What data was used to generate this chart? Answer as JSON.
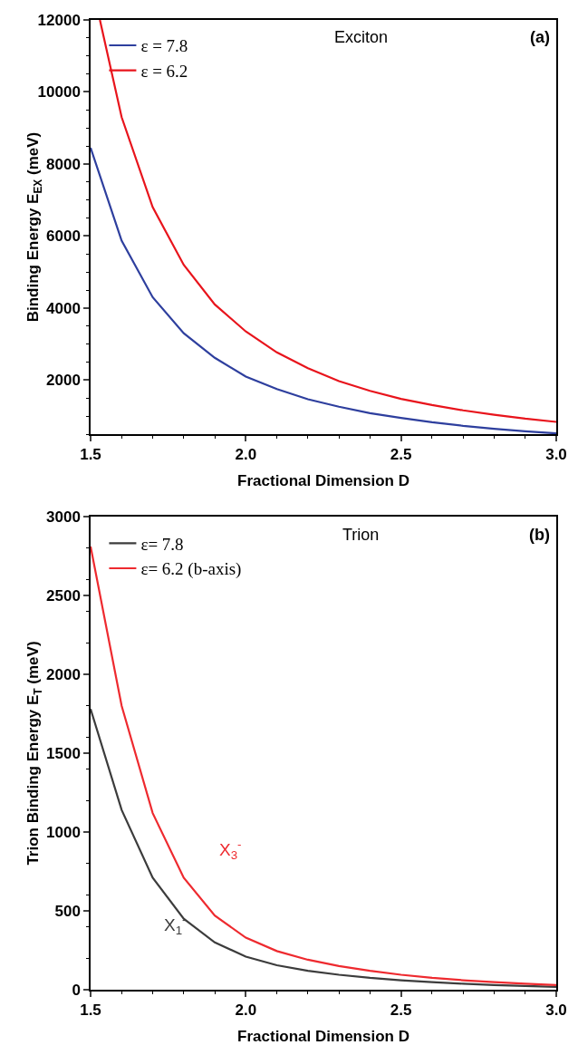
{
  "chart_data": [
    {
      "type": "line",
      "xlabel": "Fractional Dimension D",
      "ylabel": "Binding Energy E$_{EX}$ (meV)",
      "x": [
        1.5,
        1.6,
        1.7,
        1.8,
        1.9,
        2.0,
        2.1,
        2.2,
        2.3,
        2.4,
        2.5,
        2.6,
        2.7,
        2.8,
        2.9,
        3.0
      ],
      "series": [
        {
          "name": "ε = 7.8",
          "color": "#2e3f9e",
          "values": [
            8450,
            5870,
            4300,
            3300,
            2620,
            2100,
            1750,
            1470,
            1260,
            1080,
            950,
            830,
            730,
            650,
            580,
            520
          ]
        },
        {
          "name": "ε = 6.2",
          "color": "#e8141c",
          "x": [
            1.53,
            1.6,
            1.7,
            1.8,
            1.9,
            2.0,
            2.1,
            2.2,
            2.3,
            2.4,
            2.5,
            2.6,
            2.7,
            2.8,
            2.9,
            3.0
          ],
          "values": [
            12000,
            9300,
            6800,
            5200,
            4100,
            3350,
            2770,
            2330,
            1970,
            1700,
            1480,
            1310,
            1160,
            1040,
            930,
            840
          ]
        }
      ],
      "xlim": [
        1.5,
        3.0
      ],
      "xticks": [
        {
          "value": 1.5,
          "label": "1.5"
        },
        {
          "value": 2,
          "label": "2.0"
        },
        {
          "value": 2.5,
          "label": "2.5"
        },
        {
          "value": 3,
          "label": "3.0"
        }
      ],
      "ylim": [
        500,
        12000
      ],
      "yticks": [
        2000,
        4000,
        6000,
        8000,
        10000,
        12000
      ],
      "annotations": [
        "Exciton",
        "(a)"
      ],
      "legend": "top left",
      "grid": false,
      "marker": "none",
      "line_style": "solid"
    },
    {
      "type": "line",
      "xlabel": "Fractional Dimension D",
      "ylabel": "Trion Binding Energy E$_{T}$ (meV)",
      "x": [
        1.5,
        1.6,
        1.7,
        1.8,
        1.9,
        2.0,
        2.1,
        2.2,
        2.3,
        2.4,
        2.5,
        2.6,
        2.7,
        2.8,
        2.9,
        3.0
      ],
      "series": [
        {
          "name": "ε= 7.8",
          "color": "#3c3c3c",
          "values": [
            1780,
            1140,
            710,
            450,
            300,
            210,
            155,
            120,
            95,
            75,
            60,
            48,
            38,
            30,
            24,
            18
          ]
        },
        {
          "name": "ε= 6.2 (b-axis)",
          "color": "#ee2a2f",
          "values": [
            2810,
            1800,
            1120,
            710,
            470,
            330,
            245,
            190,
            150,
            120,
            95,
            75,
            60,
            48,
            38,
            30
          ]
        }
      ],
      "xlim": [
        1.5,
        3.0
      ],
      "xticks": [
        {
          "value": 1.5,
          "label": "1.5"
        },
        {
          "value": 2,
          "label": "2.0"
        },
        {
          "value": 2.5,
          "label": "2.5"
        },
        {
          "value": 3,
          "label": "3.0"
        }
      ],
      "ylim": [
        0,
        3000
      ],
      "yticks": [
        0,
        500,
        1000,
        1500,
        2000,
        2500,
        3000
      ],
      "annotations": [
        "Trion",
        "(b)",
        "X$_{1}$$^{-}$",
        "X$_{3}$$^{-}$"
      ],
      "legend": "top left",
      "grid": false,
      "marker": "none",
      "line_style": "solid"
    }
  ]
}
